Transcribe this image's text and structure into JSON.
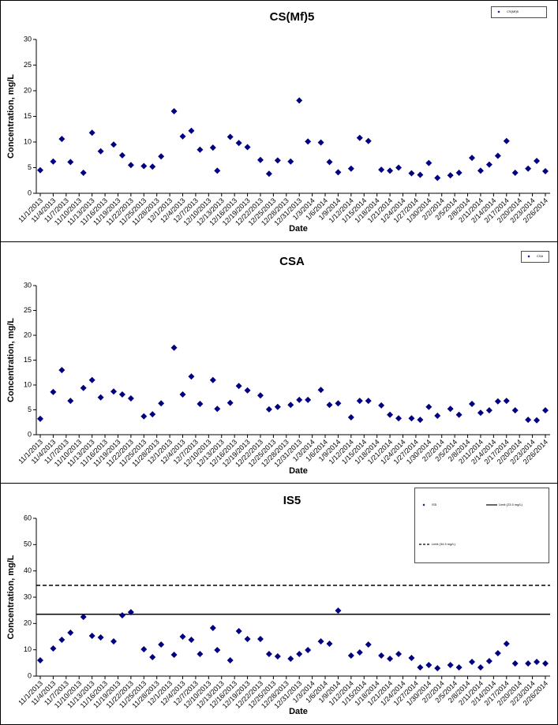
{
  "chart_data": [
    {
      "type": "scatter",
      "title": "CS(Mf)5",
      "x_label": "Date",
      "y_label": "Concentration, mg/L",
      "xlim": [
        "11/1/2013",
        "2/26/2014"
      ],
      "xticks": [
        "11/1/2013",
        "11/4/2013",
        "11/7/2013",
        "11/10/2013",
        "11/13/2013",
        "11/16/2013",
        "11/19/2013",
        "11/22/2013",
        "11/25/2013",
        "11/28/2013",
        "12/1/2013",
        "12/4/2013",
        "12/7/2013",
        "12/10/2013",
        "12/13/2013",
        "12/16/2013",
        "12/19/2013",
        "12/22/2013",
        "12/25/2013",
        "12/28/2013",
        "12/31/2013",
        "1/3/2014",
        "1/6/2014",
        "1/9/2014",
        "1/12/2014",
        "1/15/2014",
        "1/18/2014",
        "1/21/2014",
        "1/24/2014",
        "1/27/2014",
        "1/30/2014",
        "2/2/2014",
        "2/5/2014",
        "2/8/2014",
        "2/11/2014",
        "2/14/2014",
        "2/17/2014",
        "2/20/2014",
        "2/23/2014",
        "2/26/2014"
      ],
      "ylim": [
        0,
        30
      ],
      "yticks": [
        0,
        5,
        10,
        15,
        20,
        25,
        30
      ],
      "legend": "upper right",
      "x": [
        "11/1/2013",
        "11/4/2013",
        "11/6/2013",
        "11/8/2013",
        "11/11/2013",
        "11/13/2013",
        "11/15/2013",
        "11/18/2013",
        "11/20/2013",
        "11/22/2013",
        "11/25/2013",
        "11/27/2013",
        "11/29/2013",
        "12/2/2013",
        "12/4/2013",
        "12/6/2013",
        "12/8/2013",
        "12/11/2013",
        "12/12/2013",
        "12/15/2013",
        "12/17/2013",
        "12/19/2013",
        "12/22/2013",
        "12/24/2013",
        "12/26/2013",
        "12/29/2013",
        "12/31/2013",
        "1/2/2014",
        "1/5/2014",
        "1/7/2014",
        "1/9/2014",
        "1/12/2014",
        "1/14/2014",
        "1/16/2014",
        "1/19/2014",
        "1/21/2014",
        "1/23/2014",
        "1/26/2014",
        "1/28/2014",
        "1/30/2014",
        "2/1/2014",
        "2/4/2014",
        "2/6/2014",
        "2/9/2014",
        "2/11/2014",
        "2/13/2014",
        "2/15/2014",
        "2/17/2014",
        "2/19/2014",
        "2/22/2014",
        "2/24/2014",
        "2/26/2014"
      ],
      "series": [
        {
          "name": "CS(Mf)5",
          "color": "#000080",
          "values": [
            4.5,
            6.2,
            10.6,
            6.1,
            4,
            11.8,
            8.2,
            9.5,
            7.4,
            5.5,
            5.3,
            5.2,
            7.2,
            16,
            11.1,
            12.2,
            8.5,
            8.9,
            4.4,
            11,
            9.8,
            9,
            6.5,
            3.8,
            6.4,
            6.2,
            18.1,
            10.1,
            9.9,
            6.1,
            4.1,
            4.8,
            10.8,
            10.2,
            4.6,
            4.4,
            5,
            3.9,
            3.6,
            5.9,
            3,
            3.5,
            4,
            6.9,
            4.4,
            5.6,
            7.3,
            10.2,
            4,
            4.8,
            6.3,
            4.3
          ]
        }
      ]
    },
    {
      "type": "scatter",
      "title": "CSA",
      "x_label": "Date",
      "y_label": "Concentration, mg/L",
      "xlim": [
        "11/1/2013",
        "2/26/2014"
      ],
      "xticks": [
        "11/1/2013",
        "11/4/2013",
        "11/7/2013",
        "11/10/2013",
        "11/13/2013",
        "11/16/2013",
        "11/19/2013",
        "11/22/2013",
        "11/25/2013",
        "11/28/2013",
        "12/1/2013",
        "12/4/2013",
        "12/7/2013",
        "12/10/2013",
        "12/13/2013",
        "12/16/2013",
        "12/19/2013",
        "12/22/2013",
        "12/25/2013",
        "12/28/2013",
        "12/31/2013",
        "1/3/2014",
        "1/6/2014",
        "1/9/2014",
        "1/12/2014",
        "1/15/2014",
        "1/18/2014",
        "1/21/2014",
        "1/24/2014",
        "1/27/2014",
        "1/30/2014",
        "2/2/2014",
        "2/5/2014",
        "2/8/2014",
        "2/11/2014",
        "2/14/2014",
        "2/17/2014",
        "2/20/2014",
        "2/23/2014",
        "2/26/2014"
      ],
      "ylim": [
        0,
        30
      ],
      "yticks": [
        0,
        5,
        10,
        15,
        20,
        25,
        30
      ],
      "legend": "upper right",
      "x": [
        "11/1/2013",
        "11/4/2013",
        "11/6/2013",
        "11/8/2013",
        "11/11/2013",
        "11/13/2013",
        "11/15/2013",
        "11/18/2013",
        "11/20/2013",
        "11/22/2013",
        "11/25/2013",
        "11/27/2013",
        "11/29/2013",
        "12/2/2013",
        "12/4/2013",
        "12/6/2013",
        "12/8/2013",
        "12/11/2013",
        "12/12/2013",
        "12/15/2013",
        "12/17/2013",
        "12/19/2013",
        "12/22/2013",
        "12/24/2013",
        "12/26/2013",
        "12/29/2013",
        "12/31/2013",
        "1/2/2014",
        "1/5/2014",
        "1/7/2014",
        "1/9/2014",
        "1/12/2014",
        "1/14/2014",
        "1/16/2014",
        "1/19/2014",
        "1/21/2014",
        "1/23/2014",
        "1/26/2014",
        "1/28/2014",
        "1/30/2014",
        "2/1/2014",
        "2/4/2014",
        "2/6/2014",
        "2/9/2014",
        "2/11/2014",
        "2/13/2014",
        "2/15/2014",
        "2/17/2014",
        "2/19/2014",
        "2/22/2014",
        "2/24/2014",
        "2/26/2014"
      ],
      "series": [
        {
          "name": "CSA",
          "color": "#000080",
          "values": [
            3.2,
            8.6,
            13,
            6.8,
            9.4,
            11,
            7.5,
            8.7,
            8.1,
            7.3,
            3.7,
            4.1,
            6.3,
            17.5,
            8.1,
            11.7,
            6.2,
            11,
            5.2,
            6.4,
            9.8,
            8.9,
            7.9,
            5.1,
            5.6,
            6,
            7,
            7,
            9,
            6,
            6.3,
            3.5,
            6.8,
            6.8,
            5.9,
            4,
            3.3,
            3.3,
            3,
            5.6,
            3.8,
            5.2,
            4,
            6.2,
            4.4,
            4.9,
            6.7,
            6.8,
            4.9,
            3,
            2.9,
            4.9
          ]
        }
      ]
    },
    {
      "type": "scatter",
      "title": "IS5",
      "x_label": "Date",
      "y_label": "Concentration, mg/L",
      "xlim": [
        "11/1/2013",
        "2/26/2014"
      ],
      "xticks": [
        "11/1/2013",
        "11/4/2013",
        "11/7/2013",
        "11/10/2013",
        "11/13/2013",
        "11/16/2013",
        "11/19/2013",
        "11/22/2013",
        "11/25/2013",
        "11/28/2013",
        "12/1/2013",
        "12/4/2013",
        "12/7/2013",
        "12/10/2013",
        "12/13/2013",
        "12/16/2013",
        "12/19/2013",
        "12/22/2013",
        "12/25/2013",
        "12/28/2013",
        "12/31/2013",
        "1/3/2014",
        "1/6/2014",
        "1/9/2014",
        "1/12/2014",
        "1/15/2014",
        "1/18/2014",
        "1/21/2014",
        "1/24/2014",
        "1/27/2014",
        "1/30/2014",
        "2/2/2014",
        "2/5/2014",
        "2/8/2014",
        "2/11/2014",
        "2/14/2014",
        "2/17/2014",
        "2/20/2014",
        "2/23/2014",
        "2/26/2014"
      ],
      "ylim": [
        0,
        60
      ],
      "yticks": [
        0,
        10,
        20,
        30,
        40,
        50,
        60
      ],
      "legend": "upper right",
      "x": [
        "11/1/2013",
        "11/4/2013",
        "11/6/2013",
        "11/8/2013",
        "11/11/2013",
        "11/13/2013",
        "11/15/2013",
        "11/18/2013",
        "11/20/2013",
        "11/22/2013",
        "11/25/2013",
        "11/27/2013",
        "11/29/2013",
        "12/2/2013",
        "12/4/2013",
        "12/6/2013",
        "12/8/2013",
        "12/11/2013",
        "12/12/2013",
        "12/15/2013",
        "12/17/2013",
        "12/19/2013",
        "12/22/2013",
        "12/24/2013",
        "12/26/2013",
        "12/29/2013",
        "12/31/2013",
        "1/2/2014",
        "1/5/2014",
        "1/7/2014",
        "1/9/2014",
        "1/12/2014",
        "1/14/2014",
        "1/16/2014",
        "1/19/2014",
        "1/21/2014",
        "1/23/2014",
        "1/26/2014",
        "1/28/2014",
        "1/30/2014",
        "2/1/2014",
        "2/4/2014",
        "2/6/2014",
        "2/9/2014",
        "2/11/2014",
        "2/13/2014",
        "2/15/2014",
        "2/17/2014",
        "2/19/2014",
        "2/22/2014",
        "2/24/2014",
        "2/26/2014"
      ],
      "series": [
        {
          "name": "IS5",
          "color": "#000080",
          "values": [
            6,
            10.5,
            13.8,
            16.5,
            22.5,
            15.3,
            14.7,
            13.2,
            23.1,
            24.3,
            10.2,
            7.2,
            12,
            8.1,
            15,
            13.8,
            8.4,
            18.3,
            9.9,
            6,
            17.1,
            14.1,
            14.1,
            8.4,
            7.5,
            6.6,
            8.4,
            9.9,
            13.2,
            12.3,
            24.9,
            7.8,
            9,
            12,
            7.8,
            6.6,
            8.4,
            6.9,
            3.3,
            4.2,
            3,
            4.2,
            3.3,
            5.4,
            3.3,
            5.7,
            8.7,
            12.3,
            4.8,
            4.8,
            5.4,
            4.8
          ]
        }
      ],
      "reference_lines": [
        {
          "name": "Limit (23.5 mg/L)",
          "value": 23.5,
          "style": "solid",
          "color": "#000000"
        },
        {
          "name": "Limit (34.5 mg/L)",
          "value": 34.5,
          "style": "dashed",
          "color": "#000000"
        }
      ]
    }
  ]
}
